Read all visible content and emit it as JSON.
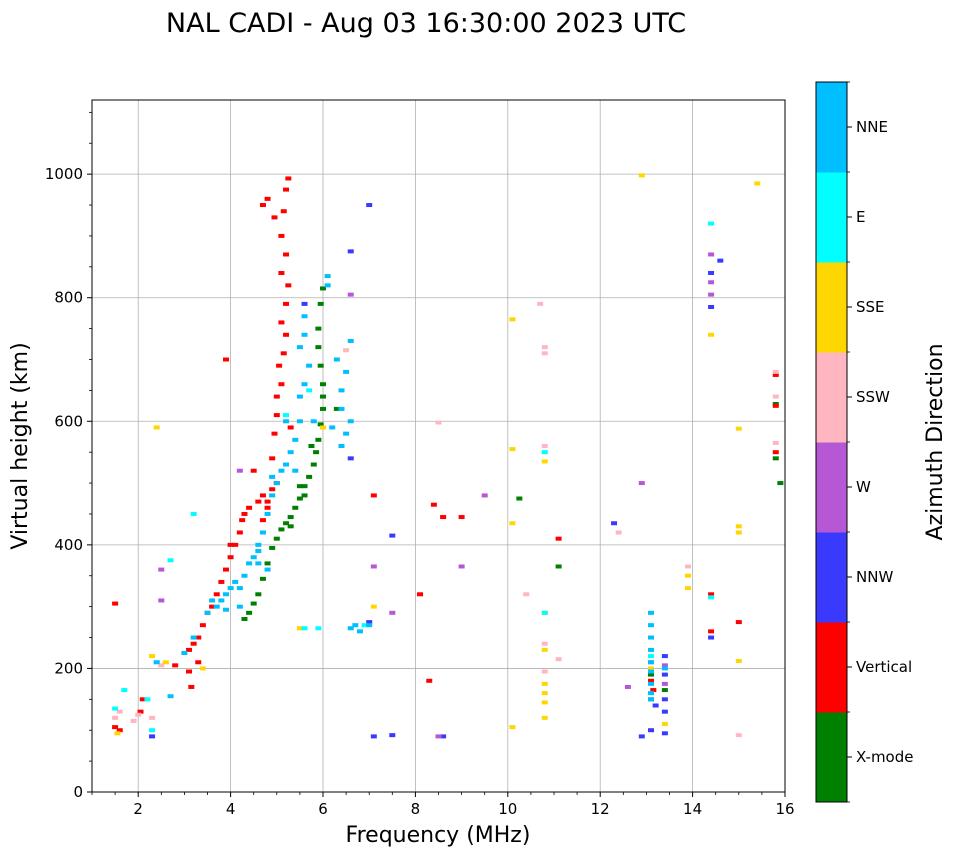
{
  "chart_data": {
    "type": "scatter",
    "title": "NAL CADI - Aug 03 16:30:00 2023 UTC",
    "xlabel": "Frequency (MHz)",
    "ylabel": "Virtual height (km)",
    "xlim": [
      1,
      16
    ],
    "ylim": [
      0,
      1120
    ],
    "grid": true,
    "xticks": [
      2,
      4,
      6,
      8,
      10,
      12,
      14,
      16
    ],
    "xtick_labels": [
      "2",
      "4",
      "6",
      "8",
      "10",
      "12",
      "14",
      "16"
    ],
    "yticks": [
      0,
      200,
      400,
      600,
      800,
      1000
    ],
    "ytick_labels": [
      "0",
      "200",
      "400",
      "600",
      "800",
      "1000"
    ],
    "colorbar": {
      "label": "Azimuth Direction",
      "categories": [
        {
          "name": "X-mode",
          "color": "#008000"
        },
        {
          "name": "Vertical",
          "color": "#ff0000"
        },
        {
          "name": "NNW",
          "color": "#3a3aff"
        },
        {
          "name": "W",
          "color": "#b657d6"
        },
        {
          "name": "SSW",
          "color": "#ffb6c1"
        },
        {
          "name": "SSE",
          "color": "#ffd700"
        },
        {
          "name": "E",
          "color": "#00ffff"
        },
        {
          "name": "NNE",
          "color": "#00bfff"
        }
      ]
    },
    "series": [
      {
        "name": "X-mode",
        "color": "#008000",
        "points": [
          [
            4.3,
            280
          ],
          [
            4.4,
            290
          ],
          [
            4.5,
            305
          ],
          [
            4.6,
            320
          ],
          [
            4.7,
            345
          ],
          [
            4.8,
            370
          ],
          [
            4.9,
            395
          ],
          [
            5.0,
            410
          ],
          [
            5.1,
            425
          ],
          [
            5.2,
            435
          ],
          [
            5.3,
            445
          ],
          [
            5.4,
            460
          ],
          [
            5.5,
            475
          ],
          [
            5.6,
            495
          ],
          [
            5.7,
            510
          ],
          [
            5.8,
            530
          ],
          [
            5.85,
            550
          ],
          [
            5.9,
            570
          ],
          [
            5.95,
            595
          ],
          [
            6.0,
            620
          ],
          [
            6.0,
            640
          ],
          [
            6.0,
            660
          ],
          [
            5.95,
            690
          ],
          [
            5.9,
            720
          ],
          [
            5.9,
            750
          ],
          [
            5.95,
            790
          ],
          [
            6.0,
            815
          ],
          [
            5.5,
            495
          ],
          [
            5.6,
            480
          ],
          [
            5.75,
            560
          ],
          [
            13.1,
            190
          ],
          [
            13.1,
            150
          ],
          [
            13.4,
            165
          ],
          [
            15.8,
            540
          ],
          [
            15.9,
            500
          ],
          [
            15.8,
            628
          ],
          [
            11.1,
            365
          ],
          [
            10.25,
            475
          ],
          [
            6.3,
            620
          ],
          [
            5.3,
            430
          ]
        ]
      },
      {
        "name": "Vertical",
        "color": "#ff0000",
        "points": [
          [
            1.5,
            105
          ],
          [
            1.6,
            100
          ],
          [
            1.5,
            305
          ],
          [
            2.05,
            130
          ],
          [
            2.1,
            150
          ],
          [
            3.1,
            230
          ],
          [
            3.2,
            240
          ],
          [
            3.3,
            250
          ],
          [
            3.4,
            270
          ],
          [
            3.5,
            290
          ],
          [
            3.6,
            300
          ],
          [
            3.7,
            320
          ],
          [
            3.8,
            340
          ],
          [
            3.9,
            360
          ],
          [
            4.0,
            380
          ],
          [
            4.1,
            400
          ],
          [
            4.2,
            420
          ],
          [
            4.25,
            440
          ],
          [
            4.3,
            450
          ],
          [
            4.4,
            460
          ],
          [
            4.6,
            470
          ],
          [
            4.7,
            480
          ],
          [
            4.8,
            470
          ],
          [
            4.9,
            490
          ],
          [
            5.0,
            500
          ],
          [
            4.7,
            440
          ],
          [
            4.8,
            460
          ],
          [
            4.9,
            540
          ],
          [
            4.95,
            580
          ],
          [
            5.0,
            610
          ],
          [
            5.0,
            640
          ],
          [
            5.1,
            660
          ],
          [
            5.05,
            690
          ],
          [
            5.15,
            710
          ],
          [
            5.2,
            740
          ],
          [
            5.1,
            760
          ],
          [
            5.2,
            790
          ],
          [
            5.25,
            820
          ],
          [
            5.1,
            840
          ],
          [
            5.2,
            870
          ],
          [
            5.1,
            900
          ],
          [
            5.15,
            940
          ],
          [
            5.2,
            975
          ],
          [
            5.25,
            993
          ],
          [
            4.7,
            950
          ],
          [
            4.8,
            960
          ],
          [
            4.95,
            930
          ],
          [
            3.9,
            700
          ],
          [
            3.1,
            195
          ],
          [
            3.15,
            170
          ],
          [
            8.4,
            465
          ],
          [
            8.6,
            445
          ],
          [
            9.0,
            445
          ],
          [
            8.3,
            180
          ],
          [
            8.1,
            320
          ],
          [
            11.1,
            410
          ],
          [
            14.4,
            320
          ],
          [
            14.4,
            260
          ],
          [
            15.0,
            275
          ],
          [
            15.8,
            675
          ],
          [
            15.8,
            625
          ],
          [
            15.8,
            550
          ],
          [
            13.1,
            180
          ],
          [
            13.15,
            165
          ],
          [
            7.1,
            480
          ],
          [
            5.3,
            590
          ],
          [
            4.5,
            520
          ],
          [
            4.0,
            400
          ],
          [
            3.3,
            210
          ],
          [
            2.8,
            205
          ]
        ]
      },
      {
        "name": "NNW",
        "color": "#3a3aff",
        "points": [
          [
            2.3,
            90
          ],
          [
            13.1,
            100
          ],
          [
            13.2,
            140
          ],
          [
            13.4,
            95
          ],
          [
            13.4,
            150
          ],
          [
            13.4,
            190
          ],
          [
            13.4,
            220
          ],
          [
            13.4,
            130
          ],
          [
            12.3,
            435
          ],
          [
            12.9,
            90
          ],
          [
            14.4,
            250
          ],
          [
            14.6,
            860
          ],
          [
            14.4,
            840
          ],
          [
            14.4,
            785
          ],
          [
            7.5,
            92
          ],
          [
            7.0,
            275
          ],
          [
            7.5,
            415
          ],
          [
            5.6,
            790
          ],
          [
            6.6,
            875
          ],
          [
            7.0,
            950
          ],
          [
            7.1,
            90
          ],
          [
            6.6,
            540
          ],
          [
            8.6,
            90
          ]
        ]
      },
      {
        "name": "W",
        "color": "#b657d6",
        "points": [
          [
            2.5,
            360
          ],
          [
            2.5,
            310
          ],
          [
            9.0,
            365
          ],
          [
            9.5,
            480
          ],
          [
            12.6,
            170
          ],
          [
            12.9,
            500
          ],
          [
            13.4,
            205
          ],
          [
            13.4,
            175
          ],
          [
            14.4,
            870
          ],
          [
            14.4,
            825
          ],
          [
            14.4,
            805
          ],
          [
            7.1,
            365
          ],
          [
            7.5,
            290
          ],
          [
            8.5,
            90
          ],
          [
            6.6,
            805
          ],
          [
            4.2,
            520
          ],
          [
            13.1,
            210
          ]
        ]
      },
      {
        "name": "SSW",
        "color": "#ffb6c1",
        "points": [
          [
            1.5,
            120
          ],
          [
            1.6,
            130
          ],
          [
            1.9,
            115
          ],
          [
            2.0,
            125
          ],
          [
            2.3,
            120
          ],
          [
            2.4,
            210
          ],
          [
            2.5,
            205
          ],
          [
            8.5,
            598
          ],
          [
            10.4,
            320
          ],
          [
            10.7,
            790
          ],
          [
            10.8,
            720
          ],
          [
            10.8,
            710
          ],
          [
            10.8,
            240
          ],
          [
            10.8,
            195
          ],
          [
            11.1,
            215
          ],
          [
            12.4,
            420
          ],
          [
            13.9,
            365
          ],
          [
            15.0,
            92
          ],
          [
            15.8,
            565
          ],
          [
            15.8,
            680
          ],
          [
            15.8,
            640
          ],
          [
            10.8,
            560
          ],
          [
            6.5,
            715
          ],
          [
            5.5,
            265
          ]
        ]
      },
      {
        "name": "SSE",
        "color": "#ffd700",
        "points": [
          [
            1.55,
            95
          ],
          [
            2.3,
            220
          ],
          [
            2.6,
            210
          ],
          [
            3.4,
            200
          ],
          [
            10.1,
            105
          ],
          [
            10.1,
            555
          ],
          [
            10.1,
            435
          ],
          [
            10.1,
            765
          ],
          [
            10.8,
            145
          ],
          [
            10.8,
            160
          ],
          [
            10.8,
            175
          ],
          [
            10.8,
            230
          ],
          [
            10.8,
            290
          ],
          [
            10.8,
            535
          ],
          [
            10.8,
            120
          ],
          [
            13.9,
            350
          ],
          [
            13.9,
            330
          ],
          [
            14.4,
            740
          ],
          [
            15.0,
            430
          ],
          [
            15.0,
            420
          ],
          [
            15.0,
            588
          ],
          [
            15.0,
            212
          ],
          [
            12.9,
            998
          ],
          [
            15.4,
            985
          ],
          [
            7.1,
            300
          ],
          [
            6.0,
            590
          ],
          [
            5.5,
            265
          ],
          [
            2.4,
            590
          ],
          [
            13.1,
            200
          ],
          [
            13.4,
            110
          ]
        ]
      },
      {
        "name": "E",
        "color": "#00ffff",
        "points": [
          [
            1.7,
            165
          ],
          [
            2.3,
            100
          ],
          [
            2.7,
            375
          ],
          [
            3.2,
            450
          ],
          [
            5.9,
            265
          ],
          [
            5.6,
            265
          ],
          [
            10.8,
            550
          ],
          [
            10.8,
            290
          ],
          [
            14.4,
            920
          ],
          [
            14.4,
            315
          ],
          [
            5.2,
            610
          ],
          [
            5.7,
            650
          ],
          [
            2.2,
            150
          ],
          [
            13.1,
            220
          ],
          [
            6.9,
            270
          ],
          [
            1.5,
            135
          ]
        ]
      },
      {
        "name": "NNE",
        "color": "#00bfff",
        "points": [
          [
            2.4,
            210
          ],
          [
            2.7,
            155
          ],
          [
            3.0,
            225
          ],
          [
            3.2,
            250
          ],
          [
            3.5,
            290
          ],
          [
            3.6,
            310
          ],
          [
            3.7,
            300
          ],
          [
            3.8,
            310
          ],
          [
            3.9,
            320
          ],
          [
            4.0,
            330
          ],
          [
            4.1,
            340
          ],
          [
            4.2,
            330
          ],
          [
            4.3,
            350
          ],
          [
            4.4,
            370
          ],
          [
            4.5,
            380
          ],
          [
            4.6,
            400
          ],
          [
            4.7,
            420
          ],
          [
            4.8,
            450
          ],
          [
            4.9,
            480
          ],
          [
            5.0,
            500
          ],
          [
            5.1,
            520
          ],
          [
            5.2,
            530
          ],
          [
            5.3,
            550
          ],
          [
            5.4,
            570
          ],
          [
            5.5,
            600
          ],
          [
            5.5,
            640
          ],
          [
            5.6,
            660
          ],
          [
            5.7,
            690
          ],
          [
            5.5,
            720
          ],
          [
            5.6,
            740
          ],
          [
            5.6,
            770
          ],
          [
            6.1,
            835
          ],
          [
            6.1,
            820
          ],
          [
            6.3,
            700
          ],
          [
            6.4,
            650
          ],
          [
            6.4,
            620
          ],
          [
            6.5,
            580
          ],
          [
            6.6,
            600
          ],
          [
            6.4,
            560
          ],
          [
            6.5,
            680
          ],
          [
            6.6,
            730
          ],
          [
            6.7,
            270
          ],
          [
            6.8,
            260
          ],
          [
            7.0,
            270
          ],
          [
            6.6,
            265
          ],
          [
            13.1,
            290
          ],
          [
            13.1,
            270
          ],
          [
            13.1,
            250
          ],
          [
            13.1,
            230
          ],
          [
            13.1,
            210
          ],
          [
            13.1,
            195
          ],
          [
            13.1,
            175
          ],
          [
            13.1,
            160
          ],
          [
            13.1,
            150
          ],
          [
            13.4,
            200
          ],
          [
            5.4,
            520
          ],
          [
            4.9,
            510
          ],
          [
            4.6,
            370
          ],
          [
            4.2,
            300
          ],
          [
            3.9,
            295
          ],
          [
            4.8,
            360
          ],
          [
            4.6,
            390
          ],
          [
            5.2,
            600
          ],
          [
            5.8,
            600
          ],
          [
            6.2,
            590
          ]
        ]
      }
    ]
  }
}
